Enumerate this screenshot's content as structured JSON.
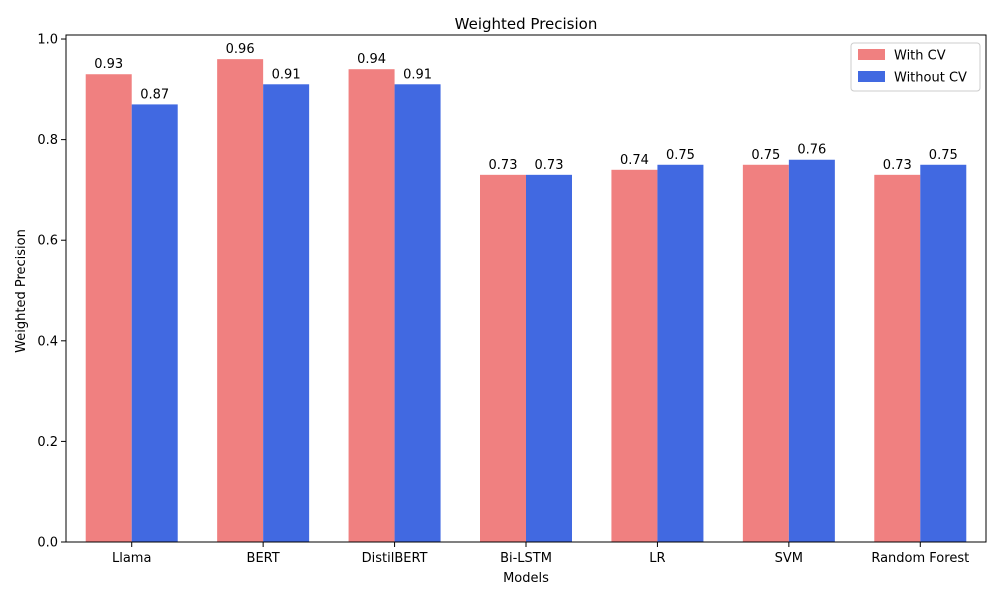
{
  "chart_data": {
    "type": "bar",
    "title": "Weighted Precision",
    "xlabel": "Models",
    "ylabel": "Weighted Precision",
    "categories": [
      "Llama",
      "BERT",
      "DistilBERT",
      "Bi-LSTM",
      "LR",
      "SVM",
      "Random Forest"
    ],
    "series": [
      {
        "name": "With CV",
        "color": "#f08080",
        "values": [
          0.93,
          0.96,
          0.94,
          0.73,
          0.74,
          0.75,
          0.73
        ]
      },
      {
        "name": "Without CV",
        "color": "#4169e1",
        "values": [
          0.87,
          0.91,
          0.91,
          0.73,
          0.75,
          0.76,
          0.75
        ]
      }
    ],
    "ylim": [
      0,
      1.008
    ],
    "yticks": [
      0.0,
      0.2,
      0.4,
      0.6,
      0.8,
      1.0
    ],
    "ytick_labels": [
      "0.0",
      "0.2",
      "0.4",
      "0.6",
      "0.8",
      "1.0"
    ],
    "grid": false,
    "legend_position": "top-right",
    "data_labels": true
  }
}
